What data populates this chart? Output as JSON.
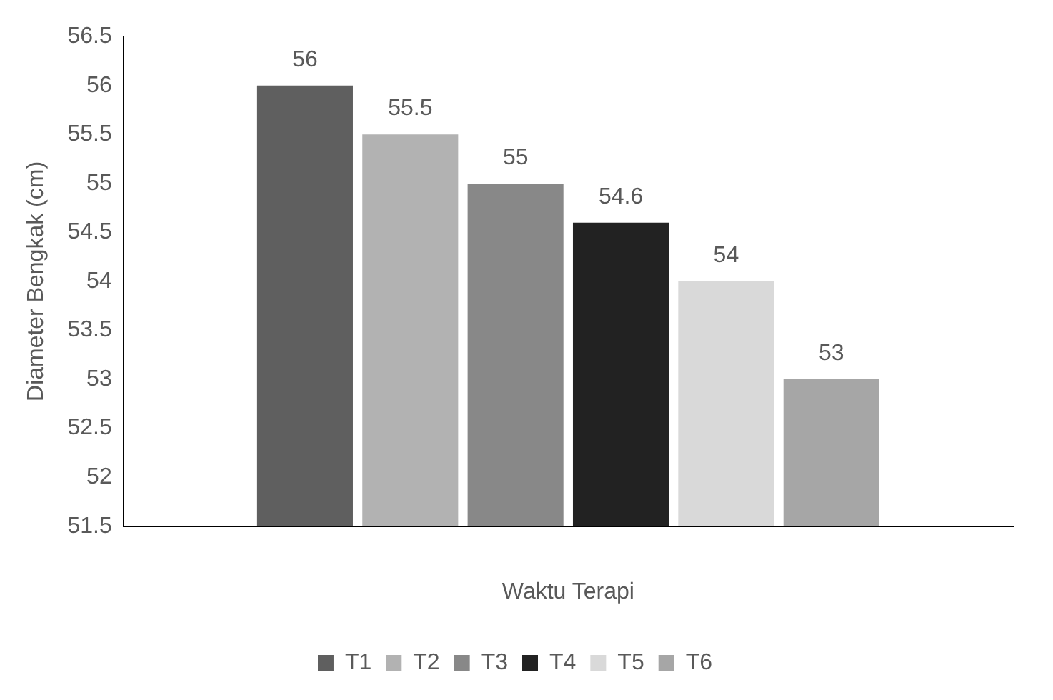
{
  "chart_data": {
    "type": "bar",
    "xlabel": "Waktu Terapi",
    "ylabel": "Diameter Bengkak (cm)",
    "categories": [
      null
    ],
    "series": [
      {
        "name": "T1",
        "color": "#5f5f5f",
        "values": [
          56
        ]
      },
      {
        "name": "T2",
        "color": "#b2b2b2",
        "values": [
          55.5
        ]
      },
      {
        "name": "T3",
        "color": "#888888",
        "values": [
          55
        ]
      },
      {
        "name": "T4",
        "color": "#222222",
        "values": [
          54.6
        ]
      },
      {
        "name": "T5",
        "color": "#d9d9d9",
        "values": [
          54
        ]
      },
      {
        "name": "T6",
        "color": "#a6a6a6",
        "values": [
          53
        ]
      }
    ],
    "ylim": [
      51.5,
      56.5
    ],
    "yticks": [
      51.5,
      52,
      52.5,
      53,
      53.5,
      54,
      54.5,
      55,
      55.5,
      56,
      56.5
    ],
    "data_labels": true,
    "legend": "bottom",
    "grid": false
  }
}
